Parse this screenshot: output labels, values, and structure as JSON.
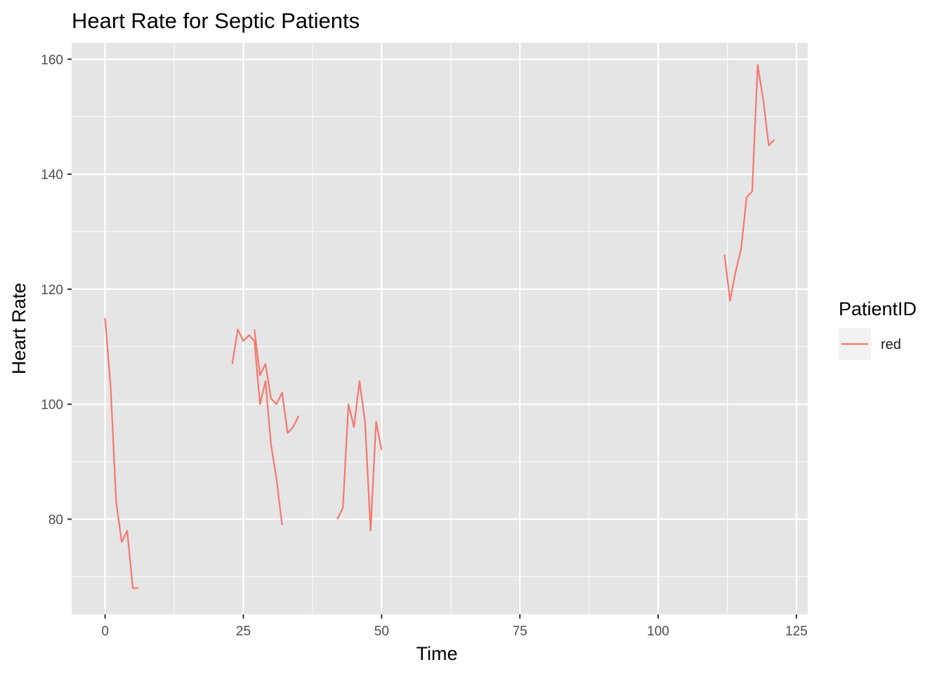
{
  "chart_data": {
    "type": "line",
    "title": "Heart Rate for Septic Patients",
    "xlabel": "Time",
    "ylabel": "Heart Rate",
    "xlim": [
      -6.05,
      127.05
    ],
    "ylim": [
      63.45,
      162.85
    ],
    "x_ticks": [
      0,
      25,
      50,
      75,
      100,
      125
    ],
    "x_minor": [
      12.5,
      37.5,
      62.5,
      87.5,
      112.5
    ],
    "y_ticks": [
      80,
      100,
      120,
      140,
      160
    ],
    "y_minor": [
      70,
      90,
      110,
      130,
      150
    ],
    "grid": true,
    "background": "#e5e5e5",
    "legend": {
      "title": "PatientID",
      "position": "right"
    },
    "series": [
      {
        "name": "red",
        "color": "#f8766d",
        "segments": [
          [
            [
              0,
              115
            ],
            [
              1,
              103
            ],
            [
              2,
              83
            ],
            [
              3,
              76
            ],
            [
              4,
              78
            ],
            [
              5,
              68
            ],
            [
              6,
              68
            ]
          ],
          [
            [
              23,
              107
            ],
            [
              24,
              113
            ],
            [
              25,
              111
            ],
            [
              26,
              112
            ],
            [
              27,
              111
            ],
            [
              28,
              100
            ],
            [
              29,
              104
            ],
            [
              30,
              93
            ],
            [
              31,
              87
            ],
            [
              32,
              79
            ]
          ],
          [
            [
              27,
              113
            ],
            [
              28,
              105
            ],
            [
              29,
              107
            ],
            [
              30,
              101
            ],
            [
              31,
              100
            ],
            [
              32,
              102
            ],
            [
              33,
              95
            ],
            [
              34,
              96
            ],
            [
              35,
              98
            ]
          ],
          [
            [
              42,
              80
            ],
            [
              43,
              82
            ],
            [
              44,
              100
            ],
            [
              45,
              96
            ],
            [
              46,
              104
            ],
            [
              47,
              97
            ],
            [
              48,
              78
            ],
            [
              49,
              97
            ],
            [
              50,
              92
            ]
          ],
          [
            [
              112,
              126
            ],
            [
              113,
              118
            ],
            [
              114,
              123
            ],
            [
              115,
              127
            ],
            [
              116,
              136
            ],
            [
              117,
              137
            ],
            [
              118,
              159
            ],
            [
              119,
              153
            ],
            [
              120,
              145
            ],
            [
              121,
              146
            ]
          ]
        ]
      }
    ]
  }
}
